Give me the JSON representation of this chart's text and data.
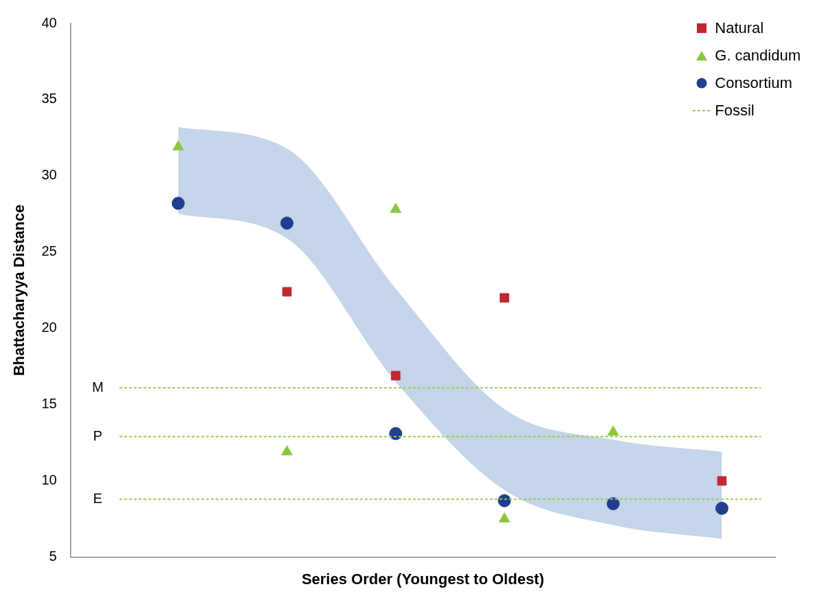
{
  "chart_data": {
    "type": "scatter",
    "xlabel": "Series Order (Youngest to Oldest)",
    "ylabel": "Bhattacharyya Distance",
    "categories": [
      null,
      null,
      null,
      null,
      null,
      null
    ],
    "series": [
      {
        "type": "area",
        "color": "#c5d5ea",
        "values": [
          null,
          null,
          null,
          null,
          null,
          null
        ],
        "lower": [
          27.5,
          25.9,
          16.5,
          9.4,
          7.1,
          6.2
        ],
        "upper": [
          33.2,
          31.8,
          22.6,
          14.7,
          12.7,
          11.9
        ]
      },
      {
        "name": "Natural",
        "marker": "square",
        "color": "#c0282d",
        "values": [
          null,
          22.4,
          16.9,
          22.0,
          null,
          10.0
        ]
      },
      {
        "name": "G. candidum",
        "marker": "triangle",
        "color": "#8cc63f",
        "values": [
          31.9,
          11.9,
          27.8,
          7.5,
          13.2,
          null
        ]
      },
      {
        "name": "Consortium",
        "marker": "circle",
        "color": "#203f8f",
        "values": [
          28.2,
          26.9,
          13.1,
          8.7,
          8.5,
          8.2
        ]
      },
      {
        "name": "Fossil",
        "type": "line",
        "line_style": "dashed",
        "color": "#92d050",
        "values": [
          null,
          null,
          null,
          null,
          null,
          null
        ]
      }
    ],
    "ref_lines": [
      {
        "axis": "y",
        "value": 16.1,
        "label": "M",
        "color": "#92d050",
        "line_style": "dashed"
      },
      {
        "axis": "y",
        "value": 12.9,
        "label": "P",
        "color": "#92d050",
        "line_style": "dashed"
      },
      {
        "axis": "y",
        "value": 8.8,
        "label": "E",
        "color": "#92d050",
        "line_style": "dashed"
      }
    ],
    "ylim": [
      5,
      40
    ],
    "yticks": [
      5,
      10,
      15,
      20,
      25,
      30,
      35,
      40
    ],
    "grid": false,
    "legend": "top right",
    "tick_labels": "y"
  }
}
